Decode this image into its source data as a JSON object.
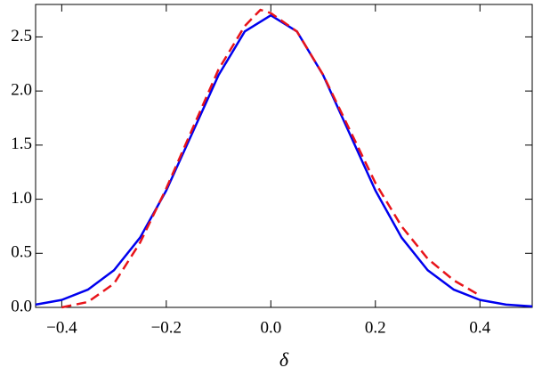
{
  "chart_data": {
    "type": "line",
    "xlabel": "δ",
    "series": [
      {
        "name": "solid",
        "color": "#0000ee",
        "dash": false,
        "x": [
          -0.45,
          -0.4,
          -0.35,
          -0.3,
          -0.25,
          -0.2,
          -0.15,
          -0.1,
          -0.05,
          0.0,
          0.05,
          0.1,
          0.15,
          0.2,
          0.25,
          0.3,
          0.35,
          0.4,
          0.45,
          0.5
        ],
        "values": [
          0.026,
          0.069,
          0.164,
          0.344,
          0.646,
          1.081,
          1.614,
          2.147,
          2.55,
          2.7,
          2.55,
          2.147,
          1.614,
          1.081,
          0.646,
          0.344,
          0.164,
          0.069,
          0.026,
          0.009
        ]
      },
      {
        "name": "dashed",
        "color": "#e8141a",
        "dash": true,
        "x": [
          -0.4,
          -0.35,
          -0.3,
          -0.25,
          -0.2,
          -0.15,
          -0.1,
          -0.05,
          -0.02,
          0.0,
          0.05,
          0.1,
          0.15,
          0.2,
          0.25,
          0.3,
          0.35,
          0.4
        ],
        "values": [
          0.0,
          0.05,
          0.22,
          0.6,
          1.1,
          1.65,
          2.2,
          2.6,
          2.75,
          2.72,
          2.55,
          2.15,
          1.65,
          1.15,
          0.75,
          0.45,
          0.25,
          0.11
        ]
      }
    ],
    "xlim": [
      -0.45,
      0.5
    ],
    "ylim": [
      0,
      2.8
    ],
    "xticks": [
      {
        "value": -0.4,
        "label": "−0.4"
      },
      {
        "value": -0.2,
        "label": "−0.2"
      },
      {
        "value": 0.0,
        "label": "0.0"
      },
      {
        "value": 0.2,
        "label": "0.2"
      },
      {
        "value": 0.4,
        "label": "0.4"
      }
    ],
    "yticks": [
      {
        "value": 0.0,
        "label": "0.0"
      },
      {
        "value": 0.5,
        "label": "0.5"
      },
      {
        "value": 1.0,
        "label": "1.0"
      },
      {
        "value": 1.5,
        "label": "1.5"
      },
      {
        "value": 2.0,
        "label": "2.0"
      },
      {
        "value": 2.5,
        "label": "2.5"
      }
    ]
  }
}
